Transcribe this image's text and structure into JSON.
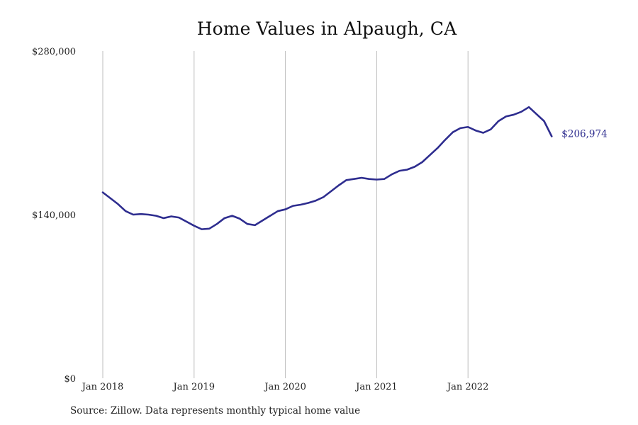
{
  "chart_data": {
    "type": "line",
    "title": "Home Values in Alpaugh, CA",
    "source": "Source: Zillow. Data represents monthly typical home value",
    "x_tick_labels": [
      "Jan 2018",
      "Jan 2019",
      "Jan 2020",
      "Jan 2021",
      "Jan 2022"
    ],
    "y_tick_labels": [
      "$0",
      "$140,000",
      "$280,000"
    ],
    "y_tick_values": [
      0,
      140000,
      280000
    ],
    "ylim": [
      0,
      280000
    ],
    "xlim": [
      "2018-01",
      "2023-01"
    ],
    "grid": "vertical lines at each January",
    "line_color": "#2e2d8f",
    "end_label": "$206,974",
    "series": [
      {
        "x": [
          "2018-01",
          "2018-02",
          "2018-03",
          "2018-04",
          "2018-05",
          "2018-06",
          "2018-07",
          "2018-08",
          "2018-09",
          "2018-10",
          "2018-11",
          "2018-12",
          "2019-01",
          "2019-02",
          "2019-03",
          "2019-04",
          "2019-05",
          "2019-06",
          "2019-07",
          "2019-08",
          "2019-09",
          "2019-10",
          "2019-11",
          "2019-12",
          "2020-01",
          "2020-02",
          "2020-03",
          "2020-04",
          "2020-05",
          "2020-06",
          "2020-07",
          "2020-08",
          "2020-09",
          "2020-10",
          "2020-11",
          "2020-12",
          "2021-01",
          "2021-02",
          "2021-03",
          "2021-04",
          "2021-05",
          "2021-06",
          "2021-07",
          "2021-08",
          "2021-09",
          "2021-10",
          "2021-11",
          "2021-12",
          "2022-01",
          "2022-02",
          "2022-03",
          "2022-04",
          "2022-05",
          "2022-06",
          "2022-07",
          "2022-08",
          "2022-09",
          "2022-10",
          "2022-11",
          "2022-12"
        ],
        "y": [
          159000,
          154000,
          149000,
          143000,
          140000,
          140500,
          140000,
          139000,
          137000,
          138500,
          137500,
          134000,
          130500,
          127500,
          128000,
          132000,
          137000,
          139000,
          136500,
          132000,
          131000,
          135000,
          139000,
          143000,
          144500,
          147500,
          148500,
          150000,
          152000,
          155000,
          160000,
          165000,
          169500,
          170500,
          171500,
          170500,
          170000,
          170500,
          174500,
          177500,
          178500,
          181000,
          185000,
          191000,
          197000,
          204000,
          210500,
          214000,
          215000,
          212000,
          210000,
          213000,
          220000,
          224000,
          225500,
          228000,
          232000,
          226000,
          220000,
          206974
        ]
      }
    ]
  }
}
